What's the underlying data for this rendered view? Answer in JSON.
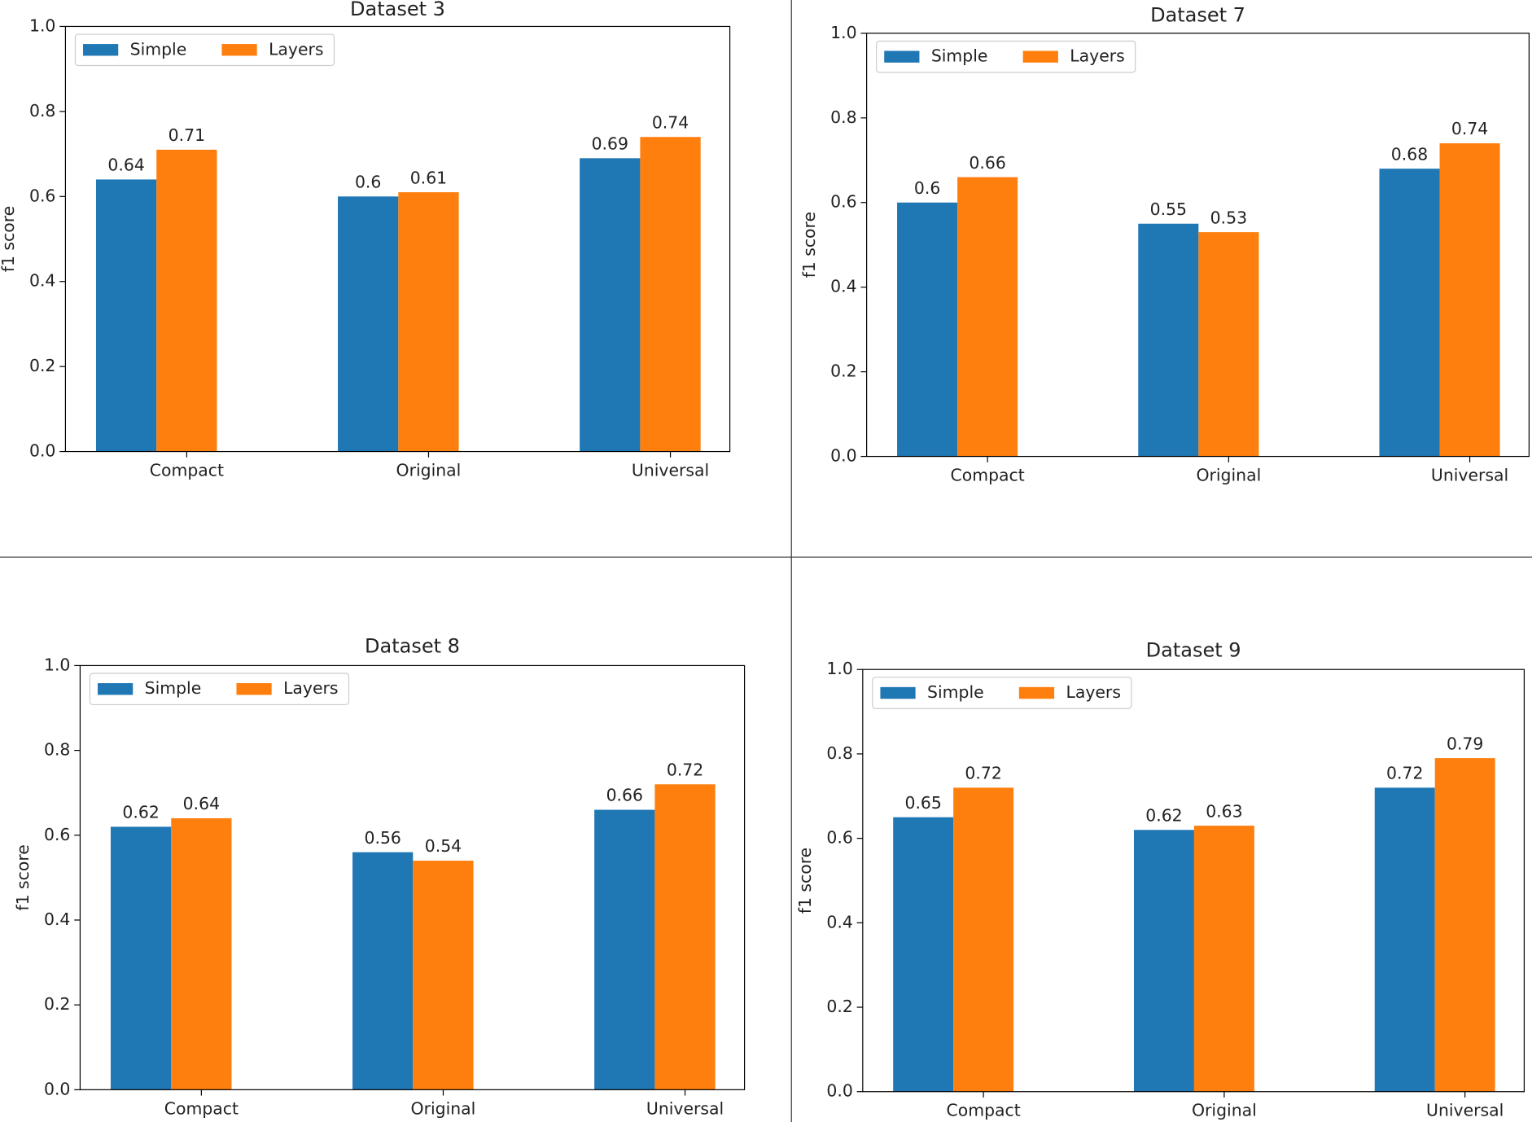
{
  "chart_data": [
    {
      "type": "bar",
      "title": "Dataset 3",
      "y_label": "f1 score",
      "categories": [
        "Compact",
        "Original",
        "Universal"
      ],
      "series": [
        {
          "name": "Simple",
          "color": "#1f77b4",
          "values": [
            0.64,
            0.6,
            0.69
          ]
        },
        {
          "name": "Layers",
          "color": "#ff7f0e",
          "values": [
            0.71,
            0.61,
            0.74
          ]
        }
      ],
      "ylim": [
        0,
        1
      ],
      "yticks": [
        {
          "value": 0,
          "label": "0.0"
        },
        0.2,
        0.4,
        0.6,
        0.8,
        {
          "value": 1,
          "label": "1.0"
        }
      ],
      "legend": "upper left"
    },
    {
      "type": "bar",
      "title": "Dataset 7",
      "y_label": "f1 score",
      "categories": [
        "Compact",
        "Original",
        "Universal"
      ],
      "series": [
        {
          "name": "Simple",
          "color": "#1f77b4",
          "values": [
            0.6,
            0.55,
            0.68
          ]
        },
        {
          "name": "Layers",
          "color": "#ff7f0e",
          "values": [
            0.66,
            0.53,
            0.74
          ]
        }
      ],
      "ylim": [
        0,
        1
      ],
      "yticks": [
        {
          "value": 0,
          "label": "0.0"
        },
        0.2,
        0.4,
        0.6,
        0.8,
        {
          "value": 1,
          "label": "1.0"
        }
      ],
      "legend": "upper left"
    },
    {
      "type": "bar",
      "title": "Dataset 8",
      "y_label": "f1 score",
      "categories": [
        "Compact",
        "Original",
        "Universal"
      ],
      "series": [
        {
          "name": "Simple",
          "color": "#1f77b4",
          "values": [
            0.62,
            0.56,
            0.66
          ]
        },
        {
          "name": "Layers",
          "color": "#ff7f0e",
          "values": [
            0.64,
            0.54,
            0.72
          ]
        }
      ],
      "ylim": [
        0,
        1
      ],
      "yticks": [
        {
          "value": 0,
          "label": "0.0"
        },
        0.2,
        0.4,
        0.6,
        0.8,
        {
          "value": 1,
          "label": "1.0"
        }
      ],
      "legend": "upper left"
    },
    {
      "type": "bar",
      "title": "Dataset 9",
      "y_label": "f1 score",
      "categories": [
        "Compact",
        "Original",
        "Universal"
      ],
      "series": [
        {
          "name": "Simple",
          "color": "#1f77b4",
          "values": [
            0.65,
            0.62,
            0.72
          ]
        },
        {
          "name": "Layers",
          "color": "#ff7f0e",
          "values": [
            0.72,
            0.63,
            0.79
          ]
        }
      ],
      "ylim": [
        0,
        1
      ],
      "yticks": [
        {
          "value": 0,
          "label": "0.0"
        },
        0.2,
        0.4,
        0.6,
        0.8,
        {
          "value": 1,
          "label": "1.0"
        }
      ],
      "legend": "upper left"
    }
  ]
}
